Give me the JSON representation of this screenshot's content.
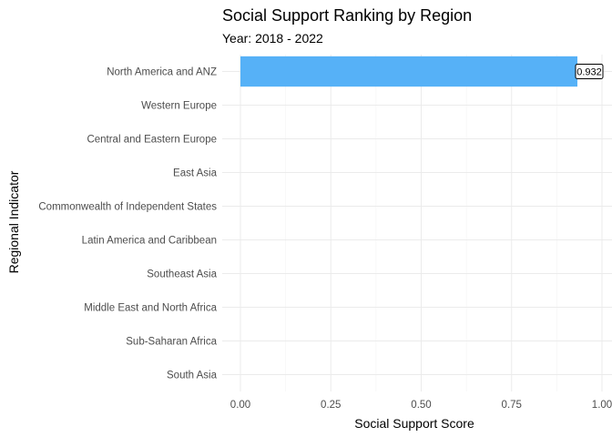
{
  "chart_data": {
    "type": "bar",
    "orientation": "horizontal",
    "title": "Social Support Ranking by Region",
    "subtitle": "Year: 2018 - 2022",
    "xlabel": "Social Support Score",
    "ylabel": "Regional Indicator",
    "xlim": [
      0,
      1
    ],
    "x_ticks": [
      "0.00",
      "0.25",
      "0.50",
      "0.75",
      "1.00"
    ],
    "x_tick_values": [
      0,
      0.25,
      0.5,
      0.75,
      1.0
    ],
    "grid": true,
    "categories": [
      "North America and ANZ",
      "Western Europe",
      "Central and Eastern Europe",
      "East Asia",
      "Commonwealth of Independent States",
      "Latin America and Caribbean",
      "Southeast Asia",
      "Middle East and North Africa",
      "Sub-Saharan Africa",
      "South Asia"
    ],
    "values": [
      0.932,
      null,
      null,
      null,
      null,
      null,
      null,
      null,
      null,
      null
    ],
    "data_labels": [
      "0.932",
      null,
      null,
      null,
      null,
      null,
      null,
      null,
      null,
      null
    ],
    "bar_color": "#56B1F7"
  }
}
